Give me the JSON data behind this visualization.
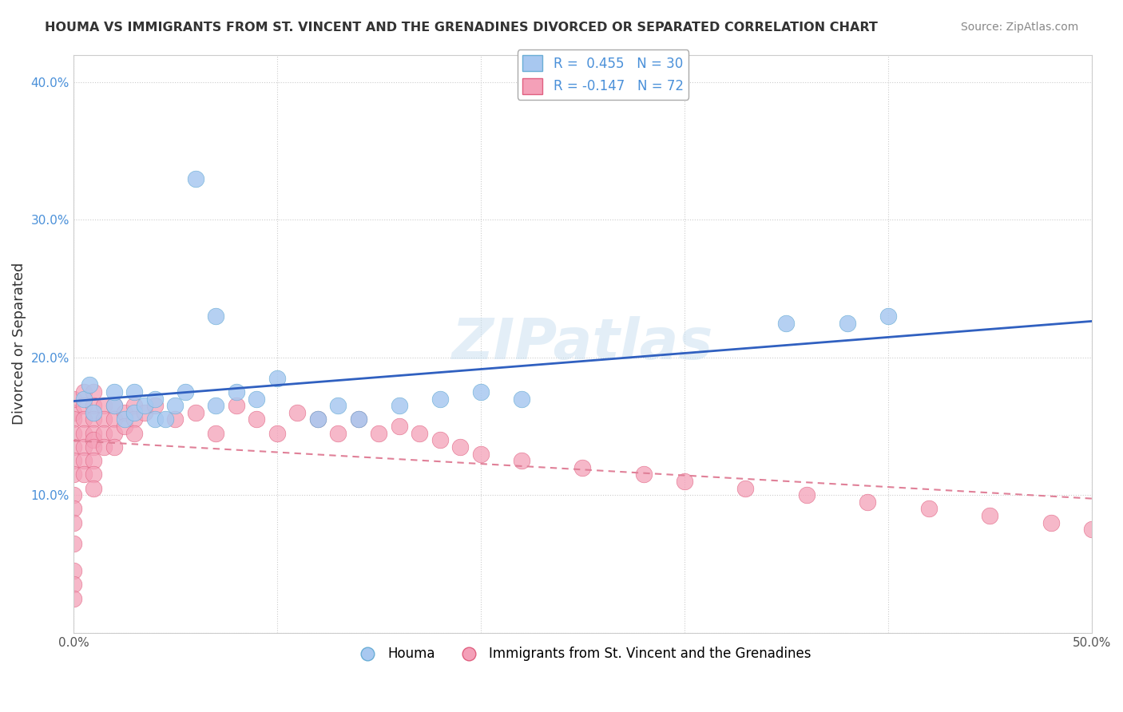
{
  "title": "HOUMA VS IMMIGRANTS FROM ST. VINCENT AND THE GRENADINES DIVORCED OR SEPARATED CORRELATION CHART",
  "source": "Source: ZipAtlas.com",
  "ylabel": "Divorced or Separated",
  "xlabel": "",
  "xlim": [
    0.0,
    0.5
  ],
  "ylim": [
    0.0,
    0.42
  ],
  "houma_color": "#a8c8f0",
  "houma_edge_color": "#6aaed6",
  "immigrants_color": "#f4a0b8",
  "immigrants_edge_color": "#e06080",
  "trend_houma_color": "#3060c0",
  "trend_immigrants_color": "#e08098",
  "legend_R_houma": "R =  0.455",
  "legend_N_houma": "N = 30",
  "legend_R_immigrants": "R = -0.147",
  "legend_N_immigrants": "N = 72",
  "legend_label_houma": "Houma",
  "legend_label_immigrants": "Immigrants from St. Vincent and the Grenadines",
  "watermark": "ZIPatlas",
  "grid_color": "#cccccc",
  "background_color": "#ffffff",
  "houma_points_x": [
    0.005,
    0.008,
    0.06,
    0.01,
    0.02,
    0.02,
    0.025,
    0.03,
    0.03,
    0.035,
    0.04,
    0.04,
    0.045,
    0.05,
    0.055,
    0.07,
    0.07,
    0.08,
    0.09,
    0.1,
    0.12,
    0.13,
    0.14,
    0.16,
    0.18,
    0.2,
    0.22,
    0.35,
    0.38,
    0.4
  ],
  "houma_points_y": [
    0.17,
    0.18,
    0.33,
    0.16,
    0.165,
    0.175,
    0.155,
    0.175,
    0.16,
    0.165,
    0.155,
    0.17,
    0.155,
    0.165,
    0.175,
    0.165,
    0.23,
    0.175,
    0.17,
    0.185,
    0.155,
    0.165,
    0.155,
    0.165,
    0.17,
    0.175,
    0.17,
    0.225,
    0.225,
    0.23
  ],
  "immigrants_points_x": [
    0.0,
    0.0,
    0.0,
    0.0,
    0.0,
    0.0,
    0.0,
    0.0,
    0.0,
    0.0,
    0.0,
    0.0,
    0.0,
    0.0,
    0.005,
    0.005,
    0.005,
    0.005,
    0.005,
    0.005,
    0.005,
    0.01,
    0.01,
    0.01,
    0.01,
    0.01,
    0.01,
    0.01,
    0.01,
    0.01,
    0.015,
    0.015,
    0.015,
    0.015,
    0.02,
    0.02,
    0.02,
    0.02,
    0.025,
    0.025,
    0.03,
    0.03,
    0.03,
    0.035,
    0.04,
    0.05,
    0.06,
    0.07,
    0.08,
    0.09,
    0.1,
    0.11,
    0.12,
    0.13,
    0.14,
    0.15,
    0.16,
    0.17,
    0.18,
    0.19,
    0.2,
    0.22,
    0.25,
    0.28,
    0.3,
    0.33,
    0.36,
    0.39,
    0.42,
    0.45,
    0.48,
    0.5
  ],
  "immigrants_points_y": [
    0.16,
    0.17,
    0.155,
    0.145,
    0.135,
    0.125,
    0.115,
    0.1,
    0.09,
    0.08,
    0.065,
    0.045,
    0.035,
    0.025,
    0.175,
    0.165,
    0.155,
    0.145,
    0.135,
    0.125,
    0.115,
    0.175,
    0.165,
    0.155,
    0.145,
    0.14,
    0.135,
    0.125,
    0.115,
    0.105,
    0.165,
    0.155,
    0.145,
    0.135,
    0.165,
    0.155,
    0.145,
    0.135,
    0.16,
    0.15,
    0.165,
    0.155,
    0.145,
    0.16,
    0.165,
    0.155,
    0.16,
    0.145,
    0.165,
    0.155,
    0.145,
    0.16,
    0.155,
    0.145,
    0.155,
    0.145,
    0.15,
    0.145,
    0.14,
    0.135,
    0.13,
    0.125,
    0.12,
    0.115,
    0.11,
    0.105,
    0.1,
    0.095,
    0.09,
    0.085,
    0.08,
    0.075
  ]
}
